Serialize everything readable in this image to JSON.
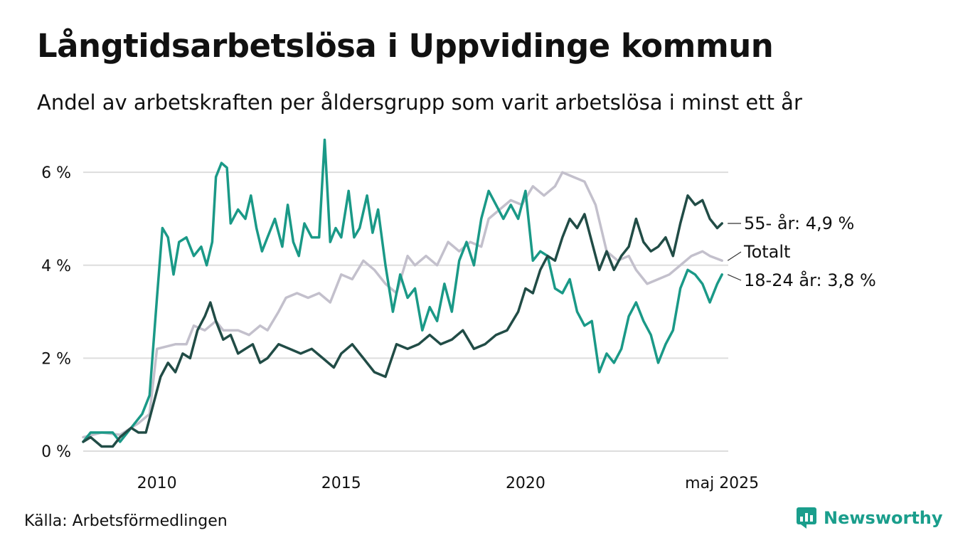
{
  "title": "Långtidsarbetslösa i Uppvidinge kommun",
  "subtitle": "Andel av arbetskraften per åldersgrupp som varit arbetslösa i minst ett år",
  "source": "Källa: Arbetsförmedlingen",
  "brand": "Newsworthy",
  "colors": {
    "young": "#1a9987",
    "old": "#214c46",
    "total": "#c3c0cc",
    "grid": "#dddddd",
    "brand": "#1a9e8c"
  },
  "chart_data": {
    "type": "line",
    "ylim": [
      0,
      6.6
    ],
    "xlim": [
      2008.0,
      2025.5
    ],
    "y_ticks": [
      {
        "value": 0,
        "label": "0 %"
      },
      {
        "value": 2,
        "label": "2 %"
      },
      {
        "value": 4,
        "label": "4 %"
      },
      {
        "value": 6,
        "label": "6 %"
      }
    ],
    "x_ticks": [
      {
        "value": 2010,
        "label": "2010"
      },
      {
        "value": 2015,
        "label": "2015"
      },
      {
        "value": 2020,
        "label": "2020"
      },
      {
        "value": 2025.33,
        "label": "maj 2025"
      }
    ],
    "grid": true,
    "series": [
      {
        "key": "total",
        "name": "Totalt",
        "end_label": "Totalt",
        "values": [
          [
            2008.0,
            0.3
          ],
          [
            2008.5,
            0.4
          ],
          [
            2009.0,
            0.35
          ],
          [
            2009.5,
            0.6
          ],
          [
            2009.8,
            0.8
          ],
          [
            2010.0,
            2.2
          ],
          [
            2010.5,
            2.3
          ],
          [
            2010.8,
            2.3
          ],
          [
            2011.0,
            2.7
          ],
          [
            2011.3,
            2.6
          ],
          [
            2011.6,
            2.8
          ],
          [
            2011.8,
            2.6
          ],
          [
            2012.2,
            2.6
          ],
          [
            2012.5,
            2.5
          ],
          [
            2012.8,
            2.7
          ],
          [
            2013.0,
            2.6
          ],
          [
            2013.3,
            3.0
          ],
          [
            2013.5,
            3.3
          ],
          [
            2013.8,
            3.4
          ],
          [
            2014.1,
            3.3
          ],
          [
            2014.4,
            3.4
          ],
          [
            2014.7,
            3.2
          ],
          [
            2015.0,
            3.8
          ],
          [
            2015.3,
            3.7
          ],
          [
            2015.6,
            4.1
          ],
          [
            2015.9,
            3.9
          ],
          [
            2016.2,
            3.6
          ],
          [
            2016.5,
            3.4
          ],
          [
            2016.8,
            4.2
          ],
          [
            2017.0,
            4.0
          ],
          [
            2017.3,
            4.2
          ],
          [
            2017.6,
            4.0
          ],
          [
            2017.9,
            4.5
          ],
          [
            2018.2,
            4.3
          ],
          [
            2018.5,
            4.5
          ],
          [
            2018.8,
            4.4
          ],
          [
            2019.0,
            5.0
          ],
          [
            2019.3,
            5.2
          ],
          [
            2019.6,
            5.4
          ],
          [
            2019.9,
            5.3
          ],
          [
            2020.2,
            5.7
          ],
          [
            2020.5,
            5.5
          ],
          [
            2020.8,
            5.7
          ],
          [
            2021.0,
            6.0
          ],
          [
            2021.3,
            5.9
          ],
          [
            2021.6,
            5.8
          ],
          [
            2021.9,
            5.3
          ],
          [
            2022.2,
            4.3
          ],
          [
            2022.5,
            4.1
          ],
          [
            2022.8,
            4.2
          ],
          [
            2023.0,
            3.9
          ],
          [
            2023.3,
            3.6
          ],
          [
            2023.6,
            3.7
          ],
          [
            2023.9,
            3.8
          ],
          [
            2024.2,
            4.0
          ],
          [
            2024.5,
            4.2
          ],
          [
            2024.8,
            4.3
          ],
          [
            2025.0,
            4.2
          ],
          [
            2025.33,
            4.1
          ]
        ]
      },
      {
        "key": "young",
        "name": "18-24 år",
        "end_label": "18-24 år: 3,8 %",
        "values": [
          [
            2008.0,
            0.2
          ],
          [
            2008.2,
            0.4
          ],
          [
            2008.5,
            0.4
          ],
          [
            2008.8,
            0.4
          ],
          [
            2009.0,
            0.2
          ],
          [
            2009.3,
            0.5
          ],
          [
            2009.6,
            0.8
          ],
          [
            2009.8,
            1.2
          ],
          [
            2010.0,
            3.3
          ],
          [
            2010.15,
            4.8
          ],
          [
            2010.3,
            4.6
          ],
          [
            2010.45,
            3.8
          ],
          [
            2010.6,
            4.5
          ],
          [
            2010.8,
            4.6
          ],
          [
            2011.0,
            4.2
          ],
          [
            2011.2,
            4.4
          ],
          [
            2011.35,
            4.0
          ],
          [
            2011.5,
            4.5
          ],
          [
            2011.6,
            5.9
          ],
          [
            2011.75,
            6.2
          ],
          [
            2011.9,
            6.1
          ],
          [
            2012.0,
            4.9
          ],
          [
            2012.2,
            5.2
          ],
          [
            2012.4,
            5.0
          ],
          [
            2012.55,
            5.5
          ],
          [
            2012.7,
            4.8
          ],
          [
            2012.85,
            4.3
          ],
          [
            2013.0,
            4.6
          ],
          [
            2013.2,
            5.0
          ],
          [
            2013.4,
            4.4
          ],
          [
            2013.55,
            5.3
          ],
          [
            2013.7,
            4.5
          ],
          [
            2013.85,
            4.2
          ],
          [
            2014.0,
            4.9
          ],
          [
            2014.2,
            4.6
          ],
          [
            2014.4,
            4.6
          ],
          [
            2014.55,
            6.7
          ],
          [
            2014.7,
            4.5
          ],
          [
            2014.85,
            4.8
          ],
          [
            2015.0,
            4.6
          ],
          [
            2015.2,
            5.6
          ],
          [
            2015.35,
            4.6
          ],
          [
            2015.5,
            4.8
          ],
          [
            2015.7,
            5.5
          ],
          [
            2015.85,
            4.7
          ],
          [
            2016.0,
            5.2
          ],
          [
            2016.2,
            4.0
          ],
          [
            2016.4,
            3.0
          ],
          [
            2016.6,
            3.8
          ],
          [
            2016.8,
            3.3
          ],
          [
            2017.0,
            3.5
          ],
          [
            2017.2,
            2.6
          ],
          [
            2017.4,
            3.1
          ],
          [
            2017.6,
            2.8
          ],
          [
            2017.8,
            3.6
          ],
          [
            2018.0,
            3.0
          ],
          [
            2018.2,
            4.1
          ],
          [
            2018.4,
            4.5
          ],
          [
            2018.6,
            4.0
          ],
          [
            2018.8,
            5.0
          ],
          [
            2019.0,
            5.6
          ],
          [
            2019.2,
            5.3
          ],
          [
            2019.4,
            5.0
          ],
          [
            2019.6,
            5.3
          ],
          [
            2019.8,
            5.0
          ],
          [
            2020.0,
            5.6
          ],
          [
            2020.2,
            4.1
          ],
          [
            2020.4,
            4.3
          ],
          [
            2020.6,
            4.2
          ],
          [
            2020.8,
            3.5
          ],
          [
            2021.0,
            3.4
          ],
          [
            2021.2,
            3.7
          ],
          [
            2021.4,
            3.0
          ],
          [
            2021.6,
            2.7
          ],
          [
            2021.8,
            2.8
          ],
          [
            2022.0,
            1.7
          ],
          [
            2022.2,
            2.1
          ],
          [
            2022.4,
            1.9
          ],
          [
            2022.6,
            2.2
          ],
          [
            2022.8,
            2.9
          ],
          [
            2023.0,
            3.2
          ],
          [
            2023.2,
            2.8
          ],
          [
            2023.4,
            2.5
          ],
          [
            2023.6,
            1.9
          ],
          [
            2023.8,
            2.3
          ],
          [
            2024.0,
            2.6
          ],
          [
            2024.2,
            3.5
          ],
          [
            2024.4,
            3.9
          ],
          [
            2024.6,
            3.8
          ],
          [
            2024.8,
            3.6
          ],
          [
            2025.0,
            3.2
          ],
          [
            2025.2,
            3.6
          ],
          [
            2025.33,
            3.8
          ]
        ]
      },
      {
        "key": "old",
        "name": "55- år",
        "end_label": "55- år: 4,9 %",
        "values": [
          [
            2008.0,
            0.2
          ],
          [
            2008.2,
            0.3
          ],
          [
            2008.5,
            0.1
          ],
          [
            2008.8,
            0.1
          ],
          [
            2009.0,
            0.3
          ],
          [
            2009.3,
            0.5
          ],
          [
            2009.5,
            0.4
          ],
          [
            2009.7,
            0.4
          ],
          [
            2009.9,
            1.0
          ],
          [
            2010.1,
            1.6
          ],
          [
            2010.3,
            1.9
          ],
          [
            2010.5,
            1.7
          ],
          [
            2010.7,
            2.1
          ],
          [
            2010.9,
            2.0
          ],
          [
            2011.1,
            2.6
          ],
          [
            2011.3,
            2.9
          ],
          [
            2011.45,
            3.2
          ],
          [
            2011.6,
            2.8
          ],
          [
            2011.8,
            2.4
          ],
          [
            2012.0,
            2.5
          ],
          [
            2012.2,
            2.1
          ],
          [
            2012.4,
            2.2
          ],
          [
            2012.6,
            2.3
          ],
          [
            2012.8,
            1.9
          ],
          [
            2013.0,
            2.0
          ],
          [
            2013.3,
            2.3
          ],
          [
            2013.6,
            2.2
          ],
          [
            2013.9,
            2.1
          ],
          [
            2014.2,
            2.2
          ],
          [
            2014.5,
            2.0
          ],
          [
            2014.8,
            1.8
          ],
          [
            2015.0,
            2.1
          ],
          [
            2015.3,
            2.3
          ],
          [
            2015.6,
            2.0
          ],
          [
            2015.9,
            1.7
          ],
          [
            2016.2,
            1.6
          ],
          [
            2016.5,
            2.3
          ],
          [
            2016.8,
            2.2
          ],
          [
            2017.1,
            2.3
          ],
          [
            2017.4,
            2.5
          ],
          [
            2017.7,
            2.3
          ],
          [
            2018.0,
            2.4
          ],
          [
            2018.3,
            2.6
          ],
          [
            2018.6,
            2.2
          ],
          [
            2018.9,
            2.3
          ],
          [
            2019.2,
            2.5
          ],
          [
            2019.5,
            2.6
          ],
          [
            2019.8,
            3.0
          ],
          [
            2020.0,
            3.5
          ],
          [
            2020.2,
            3.4
          ],
          [
            2020.4,
            3.9
          ],
          [
            2020.6,
            4.2
          ],
          [
            2020.8,
            4.1
          ],
          [
            2021.0,
            4.6
          ],
          [
            2021.2,
            5.0
          ],
          [
            2021.4,
            4.8
          ],
          [
            2021.6,
            5.1
          ],
          [
            2021.8,
            4.5
          ],
          [
            2022.0,
            3.9
          ],
          [
            2022.2,
            4.3
          ],
          [
            2022.4,
            3.9
          ],
          [
            2022.6,
            4.2
          ],
          [
            2022.8,
            4.4
          ],
          [
            2023.0,
            5.0
          ],
          [
            2023.2,
            4.5
          ],
          [
            2023.4,
            4.3
          ],
          [
            2023.6,
            4.4
          ],
          [
            2023.8,
            4.6
          ],
          [
            2024.0,
            4.2
          ],
          [
            2024.2,
            4.9
          ],
          [
            2024.4,
            5.5
          ],
          [
            2024.6,
            5.3
          ],
          [
            2024.8,
            5.4
          ],
          [
            2025.0,
            5.0
          ],
          [
            2025.2,
            4.8
          ],
          [
            2025.33,
            4.9
          ]
        ]
      }
    ]
  }
}
